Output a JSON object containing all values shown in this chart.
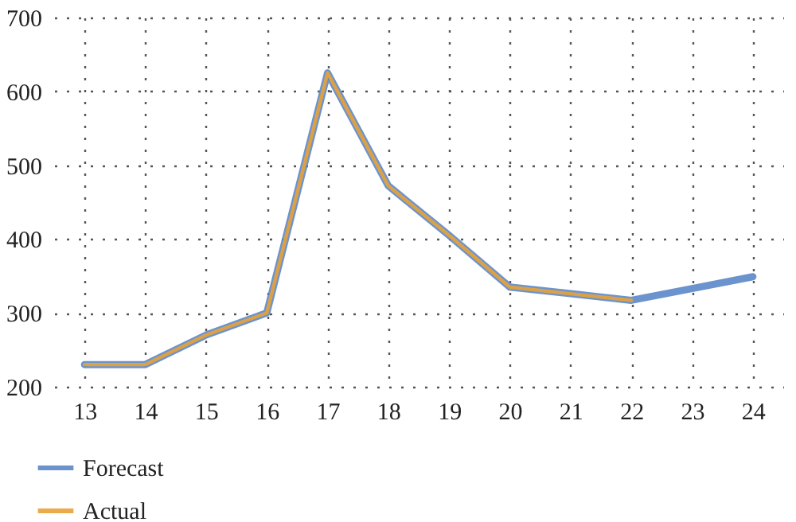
{
  "chart_data": {
    "type": "line",
    "x": [
      13,
      14,
      15,
      16,
      17,
      18,
      19,
      20,
      21,
      22,
      23,
      24
    ],
    "series": [
      {
        "name": "Forecast",
        "color": "#5b87c9",
        "values": [
          230,
          230,
          270,
          300,
          625,
          472,
          405,
          335,
          326,
          317,
          333,
          349
        ]
      },
      {
        "name": "Actual",
        "color": "#e8a33a",
        "values": [
          230,
          230,
          270,
          300,
          625,
          472,
          405,
          335,
          326,
          317,
          null,
          null
        ]
      }
    ],
    "xlim": [
      12.5,
      24.5
    ],
    "xticks": [
      13,
      14,
      15,
      16,
      17,
      18,
      19,
      20,
      21,
      22,
      23,
      24
    ],
    "ylim": [
      200,
      700
    ],
    "yticks": [
      200,
      300,
      400,
      500,
      600,
      700
    ],
    "grid": true,
    "legend": "bottom left",
    "marker": "none",
    "line_style": "solid"
  }
}
